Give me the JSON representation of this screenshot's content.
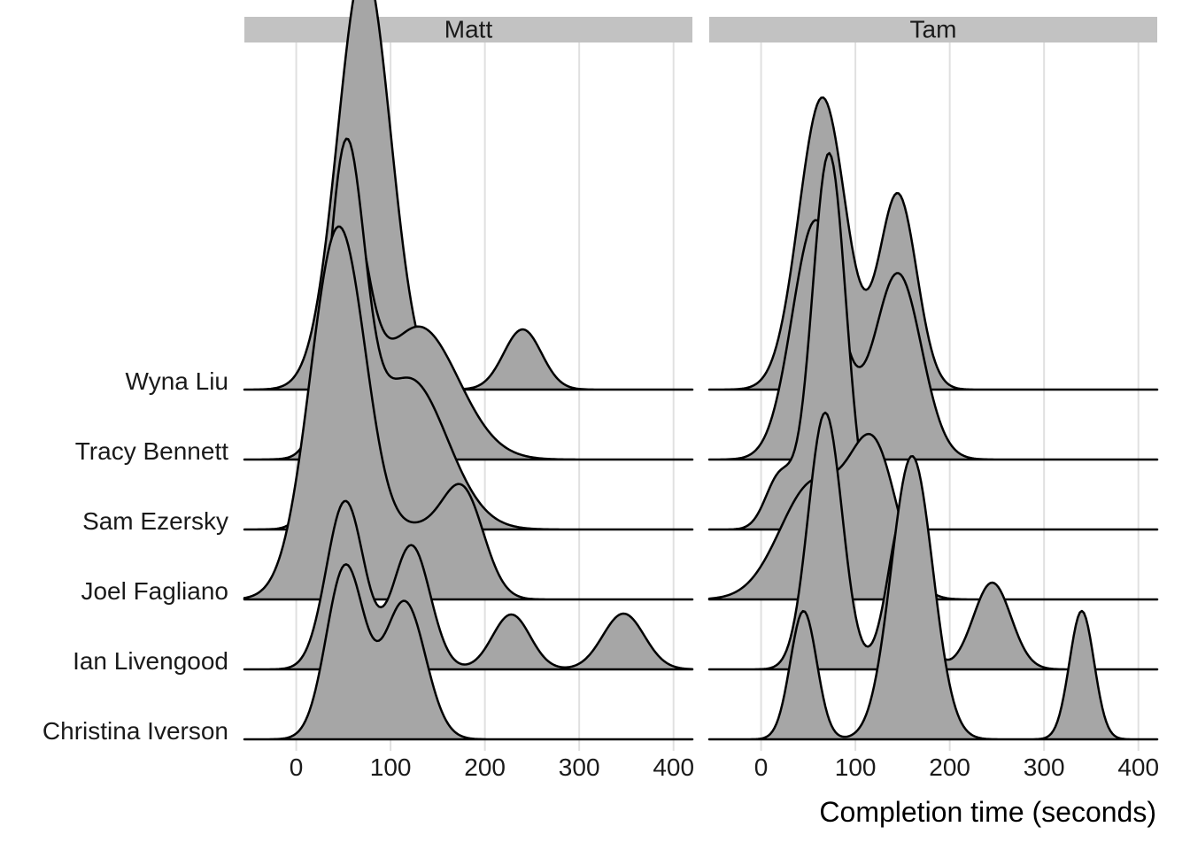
{
  "chart_data": {
    "type": "area",
    "subtype": "ridgeline",
    "xlabel": "Completion time (seconds)",
    "ylabel": "",
    "xlim": [
      -55,
      420
    ],
    "x_ticks": [
      0,
      100,
      200,
      300,
      400
    ],
    "grid": true,
    "categories": [
      "Christina Iverson",
      "Ian Livengood",
      "Joel Fagliano",
      "Sam Ezersky",
      "Tracy Bennett",
      "Wyna Liu"
    ],
    "fill_color": "#a6a6a6",
    "facets": [
      {
        "label": "Matt",
        "series": [
          {
            "name": "Christina Iverson",
            "peaks": [
              {
                "mu": 52,
                "sd": 20,
                "w": 1.95
              },
              {
                "mu": 115,
                "sd": 22,
                "w": 1.55
              }
            ]
          },
          {
            "name": "Ian Livengood",
            "peaks": [
              {
                "mu": 52,
                "sd": 20,
                "w": 1.9
              },
              {
                "mu": 122,
                "sd": 20,
                "w": 1.4
              },
              {
                "mu": 228,
                "sd": 20,
                "w": 0.62
              },
              {
                "mu": 347,
                "sd": 22,
                "w": 0.63
              }
            ]
          },
          {
            "name": "Joel Fagliano",
            "peaks": [
              {
                "mu": 45,
                "sd": 30,
                "w": 4.2
              },
              {
                "mu": 130,
                "sd": 30,
                "w": 0.7
              },
              {
                "mu": 178,
                "sd": 22,
                "w": 1.08
              }
            ]
          },
          {
            "name": "Sam Ezersky",
            "peaks": [
              {
                "mu": 52,
                "sd": 20,
                "w": 4.0
              },
              {
                "mu": 120,
                "sd": 40,
                "w": 1.7
              }
            ]
          },
          {
            "name": "Tracy Bennett",
            "peaks": [
              {
                "mu": 55,
                "sd": 20,
                "w": 2.6
              },
              {
                "mu": 130,
                "sd": 42,
                "w": 1.5
              }
            ]
          },
          {
            "name": "Wyna Liu",
            "peaks": [
              {
                "mu": 72,
                "sd": 28,
                "w": 4.8
              },
              {
                "mu": 240,
                "sd": 20,
                "w": 0.68
              }
            ]
          }
        ]
      },
      {
        "label": "Tam",
        "series": [
          {
            "name": "Christina Iverson",
            "peaks": [
              {
                "mu": 45,
                "sd": 14,
                "w": 1.45
              },
              {
                "mu": 160,
                "sd": 22,
                "w": 3.2
              },
              {
                "mu": 340,
                "sd": 13,
                "w": 1.45
              }
            ]
          },
          {
            "name": "Ian Livengood",
            "peaks": [
              {
                "mu": 68,
                "sd": 18,
                "w": 2.9
              },
              {
                "mu": 152,
                "sd": 17,
                "w": 1.8
              },
              {
                "mu": 245,
                "sd": 20,
                "w": 0.98
              }
            ]
          },
          {
            "name": "Joel Fagliano",
            "peaks": [
              {
                "mu": 55,
                "sd": 35,
                "w": 1.3
              },
              {
                "mu": 120,
                "sd": 25,
                "w": 1.6
              }
            ]
          },
          {
            "name": "Sam Ezersky",
            "peaks": [
              {
                "mu": 72,
                "sd": 18,
                "w": 4.25
              },
              {
                "mu": 20,
                "sd": 15,
                "w": 0.6
              }
            ]
          },
          {
            "name": "Tracy Bennett",
            "peaks": [
              {
                "mu": 58,
                "sd": 25,
                "w": 2.7
              },
              {
                "mu": 145,
                "sd": 25,
                "w": 2.1
              }
            ]
          },
          {
            "name": "Wyna Liu",
            "peaks": [
              {
                "mu": 65,
                "sd": 25,
                "w": 3.3
              },
              {
                "mu": 145,
                "sd": 20,
                "w": 2.2
              }
            ]
          }
        ]
      }
    ]
  }
}
